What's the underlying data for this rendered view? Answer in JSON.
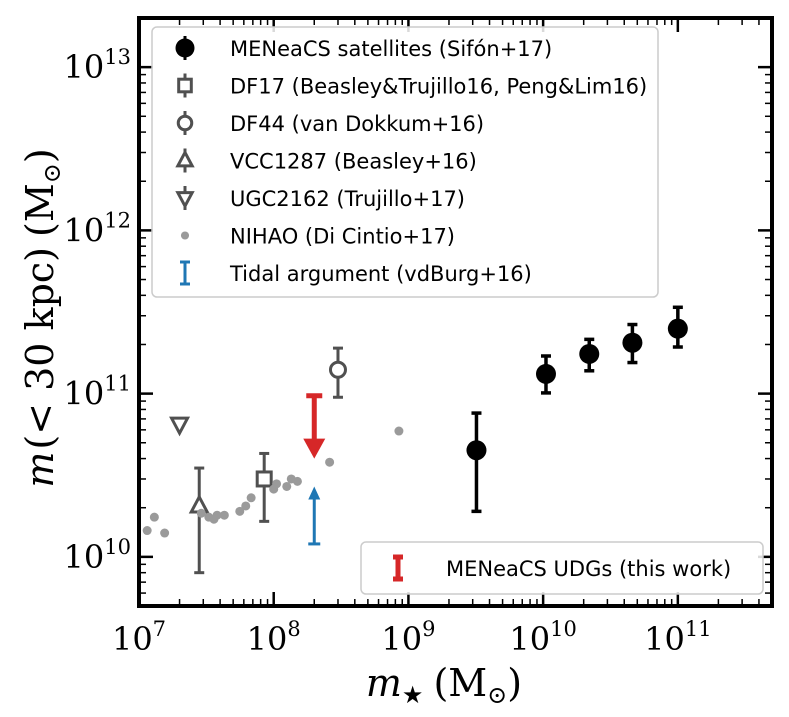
{
  "chart_data": {
    "type": "scatter",
    "title": "",
    "xscale": "log",
    "yscale": "log",
    "xlim": [
      10000000,
      500000000000
    ],
    "ylim": [
      5000000000,
      20000000000000
    ],
    "xlabel": {
      "var": "m",
      "sub": "★",
      "unit": "(M",
      "unit_sub": "⊙",
      "unit_close": ")"
    },
    "ylabel": {
      "var": "m",
      "arg": "(< 30 kpc)",
      "unit": "(M",
      "unit_sub": "⊙",
      "unit_close": ")"
    },
    "x_ticks": [
      {
        "value": 10000000,
        "base": "10",
        "exp": "7"
      },
      {
        "value": 100000000,
        "base": "10",
        "exp": "8"
      },
      {
        "value": 1000000000,
        "base": "10",
        "exp": "9"
      },
      {
        "value": 10000000000,
        "base": "10",
        "exp": "10"
      },
      {
        "value": 100000000000,
        "base": "10",
        "exp": "11"
      }
    ],
    "y_ticks": [
      {
        "value": 10000000000,
        "base": "10",
        "exp": "10"
      },
      {
        "value": 100000000000,
        "base": "10",
        "exp": "11"
      },
      {
        "value": 1000000000000,
        "base": "10",
        "exp": "12"
      },
      {
        "value": 10000000000000,
        "base": "10",
        "exp": "13"
      }
    ],
    "series": [
      {
        "name": "MENeaCS satellites (Sifón+17)",
        "marker": "circle-filled",
        "color": "#000000",
        "points": [
          {
            "x": 3200000000,
            "y": 45000000000,
            "ylo": 19000000000,
            "yhi": 76000000000
          },
          {
            "x": 10500000000,
            "y": 132000000000,
            "ylo": 101000000000,
            "yhi": 170000000000
          },
          {
            "x": 22000000000,
            "y": 175000000000,
            "ylo": 138000000000,
            "yhi": 215000000000
          },
          {
            "x": 46000000000,
            "y": 205000000000,
            "ylo": 155000000000,
            "yhi": 265000000000
          },
          {
            "x": 100000000000,
            "y": 250000000000,
            "ylo": 193000000000,
            "yhi": 338000000000
          }
        ]
      },
      {
        "name": "DF17 (Beasley&Trujillo16, Peng&Lim16)",
        "marker": "square-open",
        "color": "#505050",
        "points": [
          {
            "x": 85000000,
            "y": 30000000000,
            "ylo": 16500000000,
            "yhi": 43000000000
          }
        ]
      },
      {
        "name": "DF44 (van Dokkum+16)",
        "marker": "circle-open",
        "color": "#505050",
        "points": [
          {
            "x": 300000000,
            "y": 140000000000,
            "ylo": 95000000000,
            "yhi": 190000000000
          }
        ]
      },
      {
        "name": "VCC1287 (Beasley+16)",
        "marker": "triangle-up-open",
        "color": "#505050",
        "points": [
          {
            "x": 28000000,
            "y": 20500000000,
            "ylo": 8000000000,
            "yhi": 35000000000
          }
        ]
      },
      {
        "name": "UGC2162 (Trujillo+17)",
        "marker": "triangle-down-open",
        "color": "#505050",
        "points": [
          {
            "x": 20000000,
            "y": 65000000000
          }
        ]
      },
      {
        "name": "NIHAO (Di Cintio+17)",
        "marker": "dot",
        "color": "#9a9a9a",
        "points": [
          {
            "x": 11500000,
            "y": 14500000000
          },
          {
            "x": 13000000,
            "y": 17500000000
          },
          {
            "x": 15500000,
            "y": 14000000000
          },
          {
            "x": 29000000,
            "y": 18500000000
          },
          {
            "x": 33000000,
            "y": 17500000000
          },
          {
            "x": 36000000,
            "y": 17000000000
          },
          {
            "x": 38000000,
            "y": 18000000000
          },
          {
            "x": 43000000,
            "y": 18000000000
          },
          {
            "x": 56000000,
            "y": 19000000000
          },
          {
            "x": 62000000,
            "y": 20500000000
          },
          {
            "x": 68000000,
            "y": 23000000000
          },
          {
            "x": 100000000,
            "y": 26000000000
          },
          {
            "x": 105000000,
            "y": 28000000000
          },
          {
            "x": 125000000,
            "y": 27000000000
          },
          {
            "x": 135000000,
            "y": 30000000000
          },
          {
            "x": 150000000,
            "y": 29000000000
          },
          {
            "x": 260000000,
            "y": 38000000000
          },
          {
            "x": 850000000,
            "y": 59000000000
          }
        ]
      },
      {
        "name": "Tidal argument (vdBurg+16)",
        "marker": "lower-limit",
        "color": "#1f77b4",
        "points": [
          {
            "x": 200000000,
            "y": 12000000000,
            "arrow_to": 27000000000
          }
        ]
      },
      {
        "name": "MENeaCS UDGs (this work)",
        "marker": "upper-limit",
        "color": "#d62728",
        "points": [
          {
            "x": 200000000,
            "y": 97000000000,
            "arrow_to": 40000000000
          }
        ]
      }
    ],
    "legends": [
      {
        "position": "upper-left",
        "entries": [
          "MENeaCS satellites (Sifón+17)",
          "DF17 (Beasley&Trujillo16, Peng&Lim16)",
          "DF44 (van Dokkum+16)",
          "VCC1287 (Beasley+16)",
          "UGC2162 (Trujillo+17)",
          "NIHAO (Di Cintio+17)",
          "Tidal argument (vdBurg+16)"
        ]
      },
      {
        "position": "lower-right",
        "entries": [
          "MENeaCS UDGs (this work)"
        ]
      }
    ]
  }
}
